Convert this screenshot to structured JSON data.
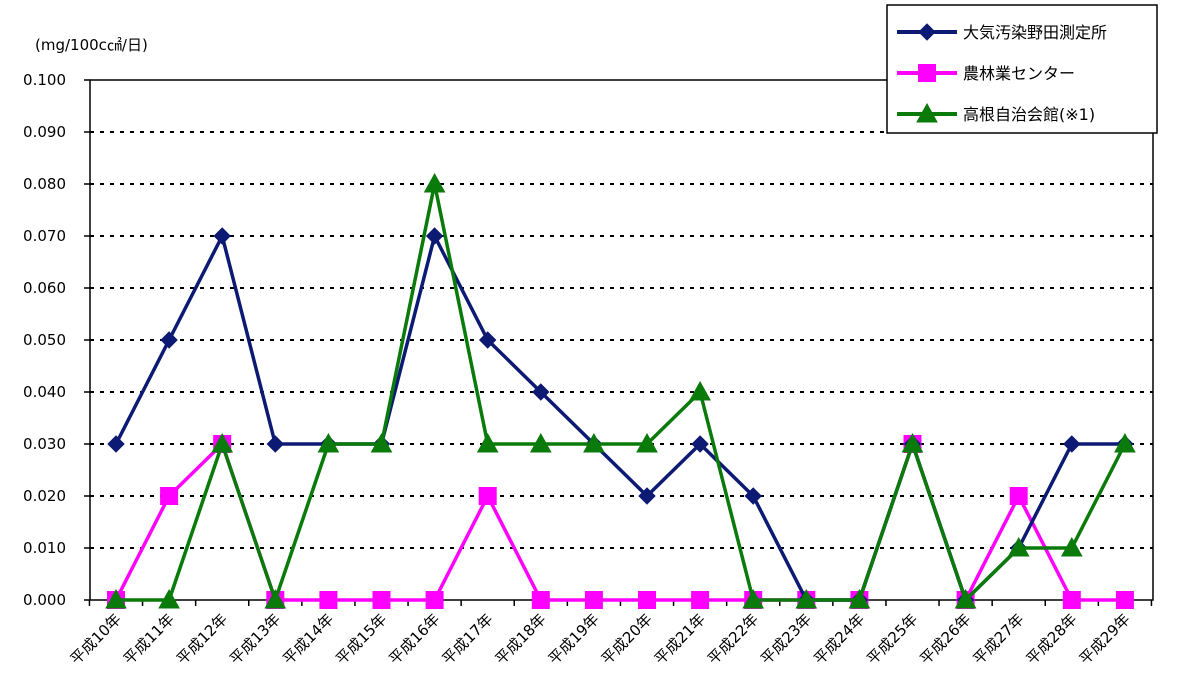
{
  "chart_data": {
    "type": "line",
    "unit_label": "(mg/100c㎠/日)",
    "categories": [
      "平成10年",
      "平成11年",
      "平成12年",
      "平成13年",
      "平成14年",
      "平成15年",
      "平成16年",
      "平成17年",
      "平成18年",
      "平成19年",
      "平成20年",
      "平成21年",
      "平成22年",
      "平成23年",
      "平成24年",
      "平成25年",
      "平成26年",
      "平成27年",
      "平成28年",
      "平成29年"
    ],
    "y_ticks": [
      "0.000",
      "0.010",
      "0.020",
      "0.030",
      "0.040",
      "0.050",
      "0.060",
      "0.070",
      "0.080",
      "0.090",
      "0.100"
    ],
    "ylim": [
      0,
      0.1
    ],
    "grid": "horizontal dotted",
    "legend_position": "top-right",
    "series": [
      {
        "name": "大気汚染野田測定所",
        "color": "#0d1a73",
        "marker": "diamond",
        "values": [
          0.03,
          0.05,
          0.07,
          0.03,
          0.03,
          0.03,
          0.07,
          0.05,
          0.04,
          0.03,
          0.02,
          0.03,
          0.02,
          0.0,
          0.0,
          0.03,
          0.0,
          0.01,
          0.03,
          0.03
        ]
      },
      {
        "name": "農林業センター",
        "color": "#ff00ff",
        "marker": "square",
        "values": [
          0.0,
          0.02,
          0.03,
          0.0,
          0.0,
          0.0,
          0.0,
          0.02,
          0.0,
          0.0,
          0.0,
          0.0,
          0.0,
          0.0,
          0.0,
          0.03,
          0.0,
          0.02,
          0.0,
          0.0
        ]
      },
      {
        "name": "高根自治会館(※1)",
        "color": "#0a7a0a",
        "marker": "triangle",
        "values": [
          0.0,
          0.0,
          0.03,
          0.0,
          0.03,
          0.03,
          0.08,
          0.03,
          0.03,
          0.03,
          0.03,
          0.04,
          0.0,
          0.0,
          0.0,
          0.03,
          0.0,
          0.01,
          0.01,
          0.03
        ]
      }
    ]
  }
}
